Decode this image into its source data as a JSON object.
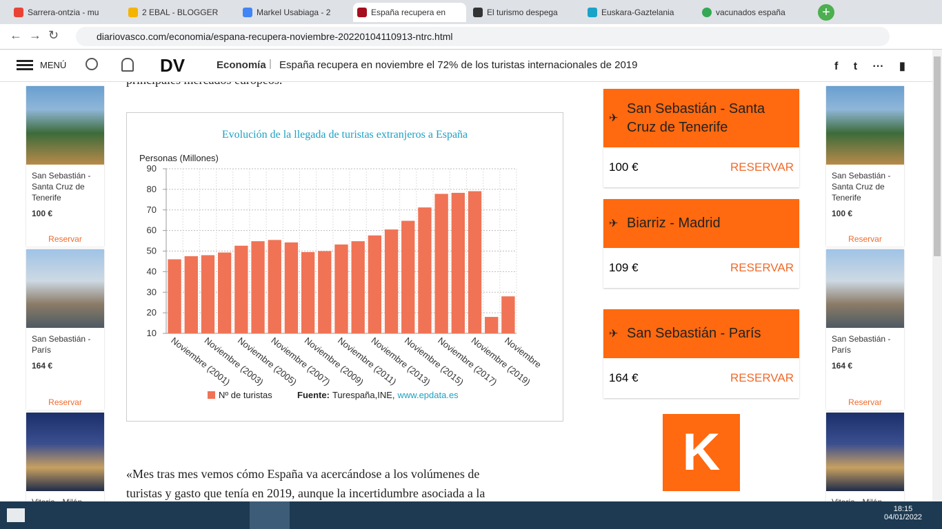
{
  "browser": {
    "tabs": [
      "Sarrera-ontzia - mu",
      "2 EBAL - BLOGGER",
      "Markel Usabiaga - 2",
      "España recupera en",
      "El turismo despega",
      "Euskara-Gaztelania",
      "vacunados españa"
    ],
    "url": "diariovasco.com/economia/espana-recupera-noviembre-20220104110913-ntrc.html"
  },
  "header": {
    "menu": "MENÚ",
    "logo": "DV",
    "section": "Economía",
    "headline": "España recupera en noviembre el 72% de los turistas internacionales de 2019"
  },
  "article": {
    "top": "principales mercados europeos.",
    "paragraph": [
      "«Mes tras mes vemos cómo España va acercándose a los volúmenes de",
      "turistas y gasto que tenía en 2019, aunque la incertidumbre asociada a la"
    ]
  },
  "left_ads": [
    {
      "title": [
        "San Sebastián -",
        "Santa Cruz de",
        "Tenerife"
      ],
      "price": "100 €",
      "cta": "Reservar"
    },
    {
      "title": [
        "San Sebastián -",
        "París"
      ],
      "price": "164 €",
      "cta": "Reservar"
    },
    {
      "title": [
        "Vitoria - Milán"
      ]
    }
  ],
  "right_ads": [
    {
      "title": [
        "San Sebastián -",
        "Santa Cruz de",
        "Tenerife"
      ],
      "price": "100 €",
      "cta": "Reservar"
    },
    {
      "title": [
        "San Sebastián -",
        "París"
      ],
      "price": "164 €",
      "cta": "Reservar"
    },
    {
      "title": [
        "Vitoria - Milán"
      ]
    }
  ],
  "flights": [
    {
      "route": [
        "San Sebastián - Santa",
        "Cruz de Tenerife"
      ],
      "price": "100 €",
      "cta": "RESERVAR"
    },
    {
      "route": [
        "Biarriz - Madrid"
      ],
      "price": "109 €",
      "cta": "RESERVAR"
    },
    {
      "route": [
        "San Sebastián - París"
      ],
      "price": "164 €",
      "cta": "RESERVAR"
    }
  ],
  "kayak": "K",
  "taskbar": {
    "time": "18:15",
    "date": "04/01/2022"
  },
  "chart_data": {
    "type": "bar",
    "title": "Evolución de la llegada de turistas extranjeros a España",
    "y_label": "Personas (Millones)",
    "categories": [
      "Noviembre (2001)",
      null,
      "Noviembre (2003)",
      null,
      "Noviembre (2005)",
      null,
      "Noviembre (2007)",
      null,
      "Noviembre (2009)",
      null,
      "Noviembre (2011)",
      null,
      "Noviembre (2013)",
      null,
      "Noviembre (2015)",
      null,
      "Noviembre (2017)",
      null,
      "Noviembre (2019)",
      null,
      "Noviembre"
    ],
    "series": [
      {
        "name": "Nº de turistas",
        "color": "#f07355",
        "values": [
          46,
          47.5,
          48,
          49.3,
          52.6,
          54.8,
          55.4,
          54.2,
          49.5,
          50,
          53.2,
          54.8,
          57.6,
          60.5,
          64.7,
          71.2,
          77.8,
          78.3,
          79.1,
          18,
          28
        ]
      }
    ],
    "ylim": [
      10,
      90
    ],
    "yticks": [
      10,
      20,
      30,
      40,
      50,
      60,
      70,
      80,
      90
    ],
    "grid": true,
    "source": {
      "label": "Fuente:",
      "text": "Turespaña,INE,",
      "link": "www.epdata.es"
    }
  }
}
